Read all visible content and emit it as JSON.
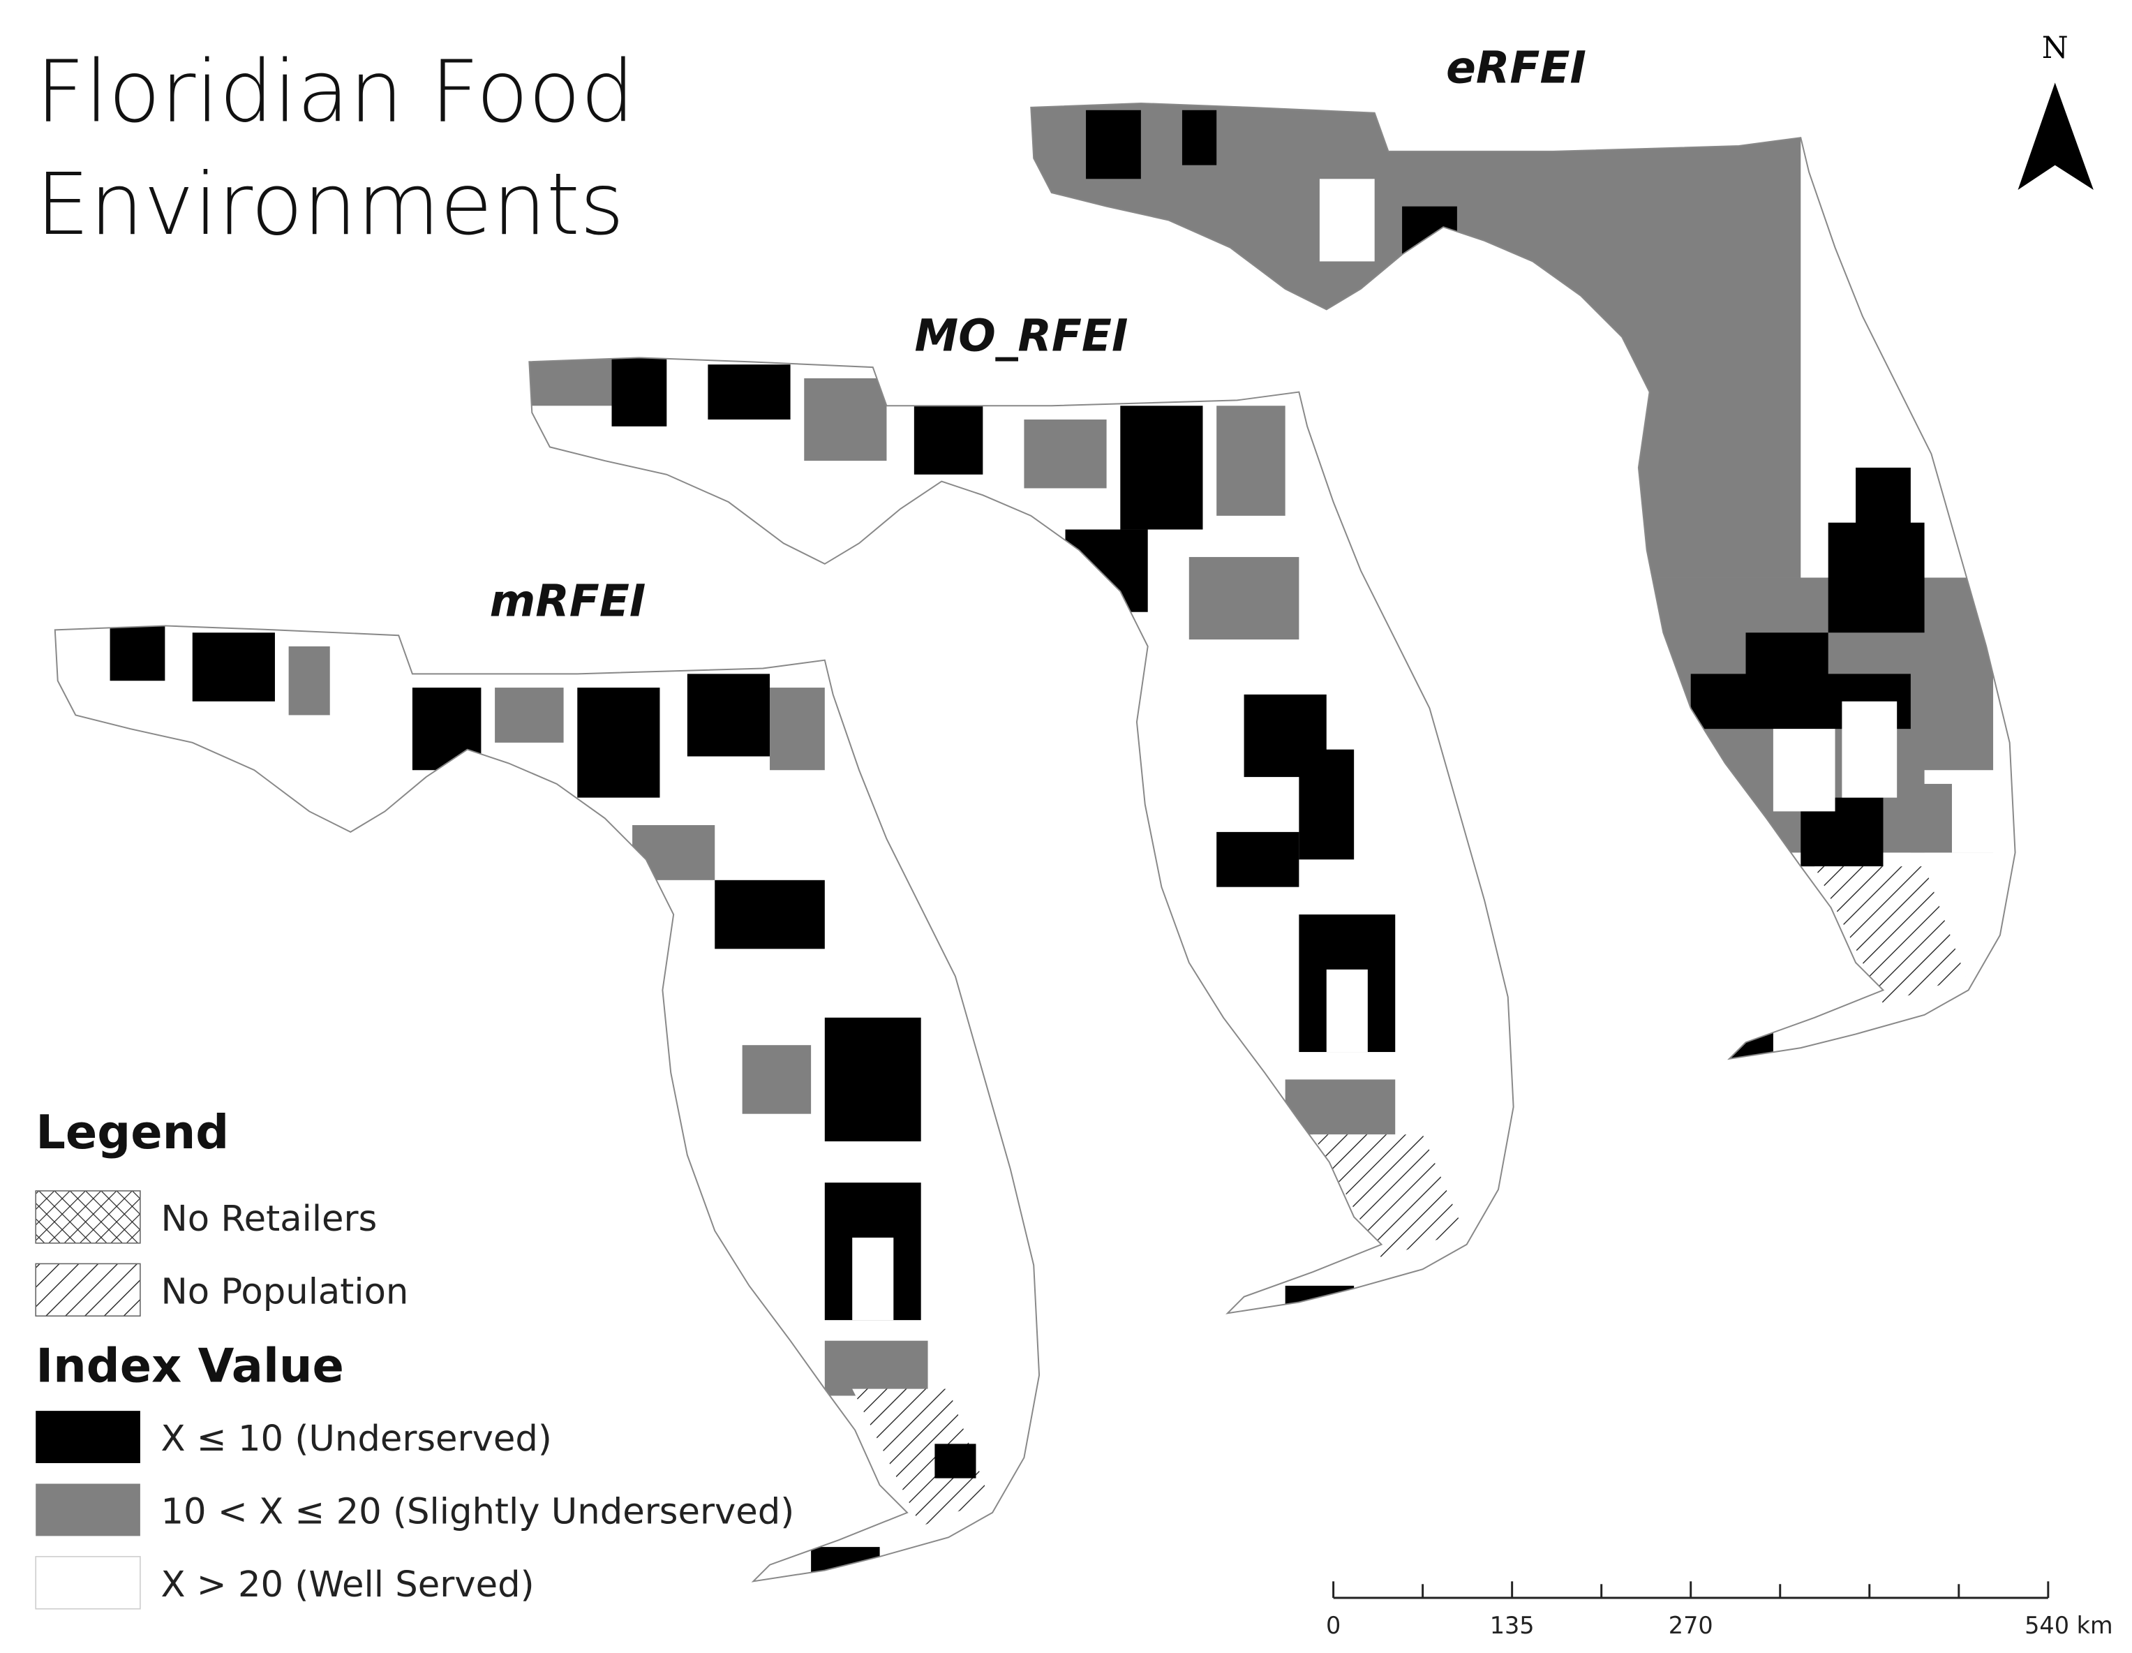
{
  "header": {
    "title": [
      "Floridian Food",
      "Environments"
    ]
  },
  "maps": [
    {
      "label": "eRFEI"
    },
    {
      "label": "MO_RFEI"
    },
    {
      "label": "mRFEI"
    }
  ],
  "north_arrow": {
    "label": "N"
  },
  "legend": {
    "title": "Legend",
    "patterns": [
      "No Retailers",
      "No Population"
    ],
    "index_title": "Index Value",
    "classes": [
      "X ≤ 10 (Underserved)",
      "10 < X ≤ 20 (Slightly Underserved)",
      "X > 20 (Well Served)"
    ]
  },
  "scale_bar": {
    "labels": [
      "0",
      "135",
      "270",
      "540 km"
    ]
  }
}
